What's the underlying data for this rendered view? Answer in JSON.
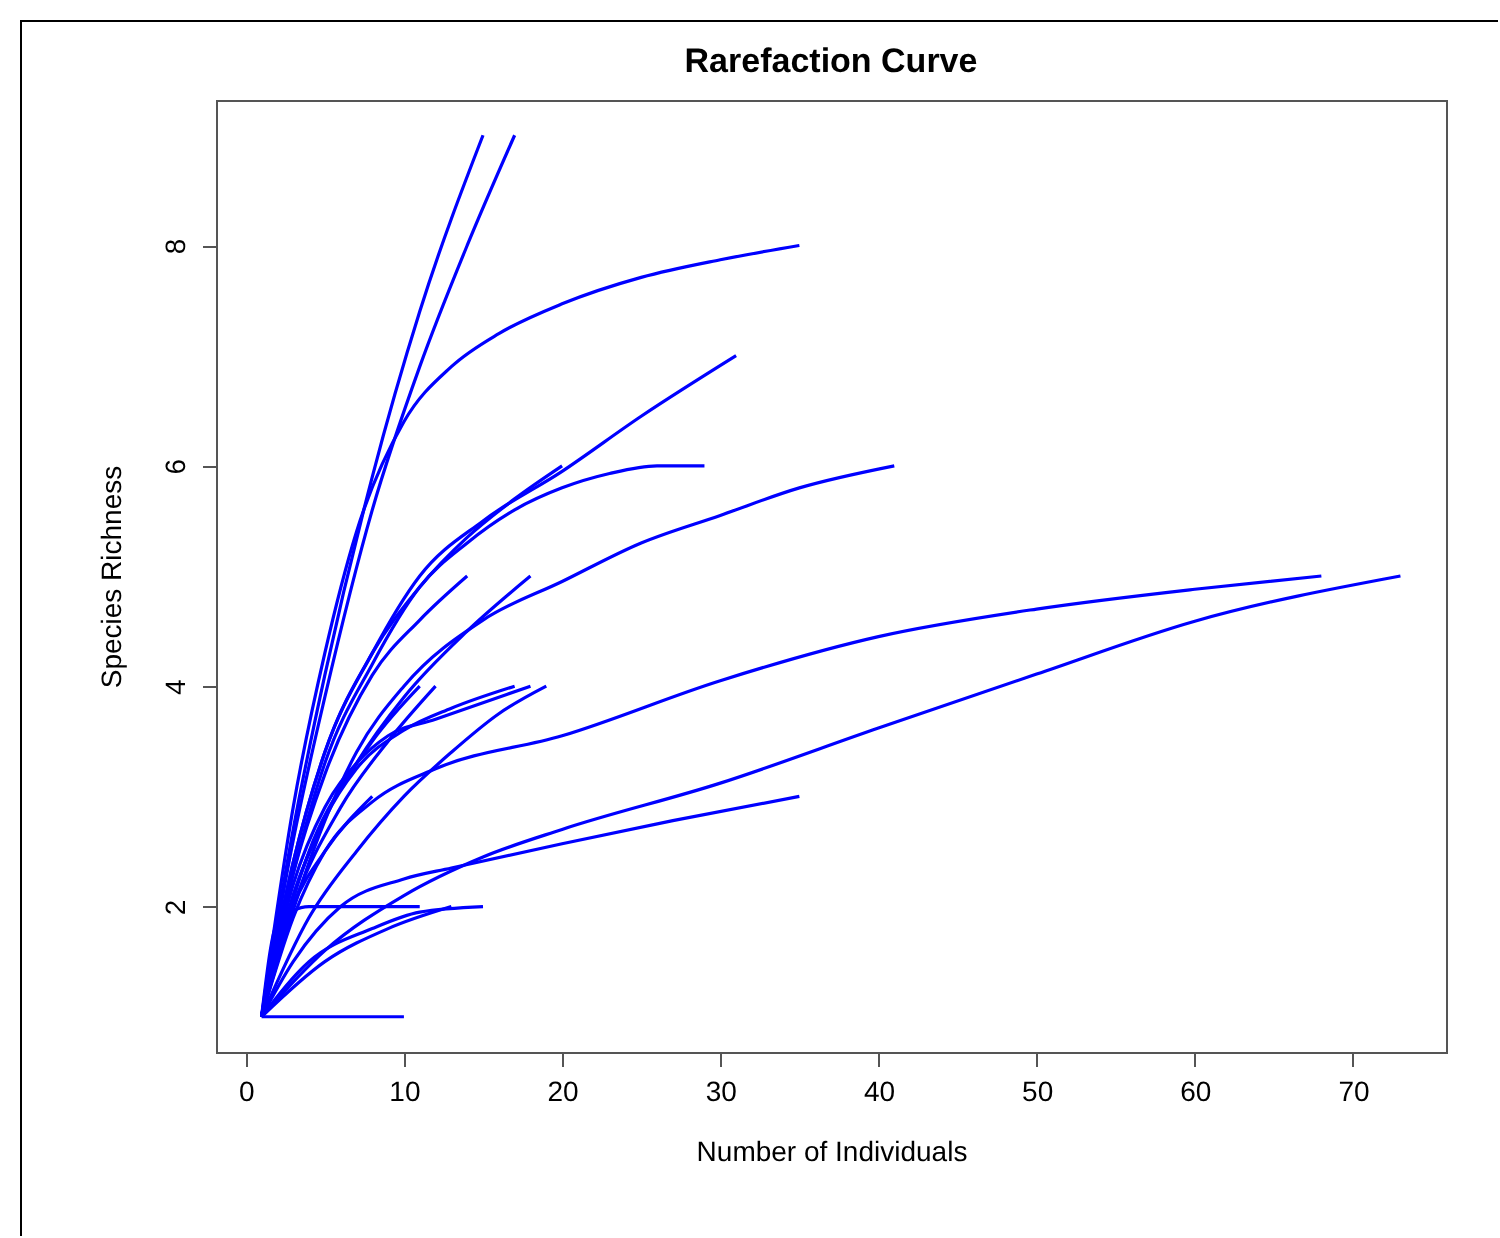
{
  "chart_data": {
    "type": "line",
    "title": "Rarefaction Curve",
    "xlabel": "Number of Individuals",
    "ylabel": "Species Richness",
    "xlim": [
      -1.88,
      75.88
    ],
    "ylim": [
      0.68,
      9.32
    ],
    "xticks": [
      0,
      10,
      20,
      30,
      40,
      50,
      60,
      70
    ],
    "yticks": [
      2,
      4,
      6,
      8
    ],
    "series": [
      {
        "color": "#0000ff",
        "x": [
          1,
          3,
          5,
          8,
          11,
          15
        ],
        "values": [
          1,
          2.7,
          4.1,
          5.9,
          7.4,
          9
        ]
      },
      {
        "color": "#0000ff",
        "x": [
          1,
          3,
          5,
          8,
          11,
          14,
          17
        ],
        "values": [
          1,
          2.6,
          3.9,
          5.6,
          6.9,
          8,
          9
        ]
      },
      {
        "color": "#0000ff",
        "x": [
          1,
          3,
          5,
          7,
          10,
          13,
          16,
          20,
          25,
          30,
          35
        ],
        "values": [
          1,
          2.9,
          4.3,
          5.4,
          6.4,
          6.9,
          7.2,
          7.47,
          7.71,
          7.87,
          8
        ]
      },
      {
        "color": "#0000ff",
        "x": [
          1,
          3,
          5,
          8,
          11,
          15,
          20,
          25,
          31
        ],
        "values": [
          1,
          2.4,
          3.4,
          4.3,
          5,
          5.5,
          5.95,
          6.45,
          7
        ]
      },
      {
        "color": "#0000ff",
        "x": [
          1,
          3,
          5,
          8,
          11,
          14,
          17,
          20
        ],
        "values": [
          1,
          2.4,
          3.4,
          4.3,
          4.9,
          5.35,
          5.7,
          6
        ]
      },
      {
        "color": "#0000ff",
        "x": [
          1,
          3,
          5,
          8,
          11,
          14,
          17,
          20,
          23,
          26,
          29
        ],
        "values": [
          1,
          2.3,
          3.3,
          4.2,
          4.9,
          5.3,
          5.6,
          5.8,
          5.93,
          6,
          6
        ]
      },
      {
        "color": "#0000ff",
        "x": [
          1,
          4,
          7,
          10,
          15,
          20,
          25,
          30,
          35,
          41
        ],
        "values": [
          1,
          2.4,
          3.4,
          4,
          4.6,
          4.95,
          5.3,
          5.55,
          5.8,
          6
        ]
      },
      {
        "color": "#0000ff",
        "x": [
          1,
          3,
          5,
          8,
          11,
          14
        ],
        "values": [
          1,
          2.3,
          3.2,
          4.1,
          4.6,
          5
        ]
      },
      {
        "color": "#0000ff",
        "x": [
          1,
          4,
          7,
          10,
          14,
          18
        ],
        "values": [
          1,
          2.5,
          3.3,
          3.9,
          4.5,
          5
        ]
      },
      {
        "color": "#0000ff",
        "x": [
          1,
          3,
          5,
          8,
          12,
          20,
          30,
          40,
          50,
          60,
          68
        ],
        "values": [
          1,
          1.9,
          2.5,
          2.95,
          3.25,
          3.55,
          4.05,
          4.45,
          4.7,
          4.88,
          5
        ]
      },
      {
        "color": "#0000ff",
        "x": [
          1,
          5,
          10,
          15,
          20,
          30,
          40,
          50,
          60,
          73
        ],
        "values": [
          1,
          1.6,
          2.1,
          2.45,
          2.7,
          3.12,
          3.62,
          4.11,
          4.59,
          5
        ]
      },
      {
        "color": "#0000ff",
        "x": [
          1,
          3,
          6,
          10,
          13,
          20,
          27,
          35
        ],
        "values": [
          1,
          1.5,
          2,
          2.25,
          2.35,
          2.57,
          2.78,
          3
        ]
      },
      {
        "color": "#0000ff",
        "x": [
          1,
          10
        ],
        "values": [
          1,
          1
        ]
      },
      {
        "color": "#0000ff",
        "x": [
          1,
          4,
          8,
          11,
          15
        ],
        "values": [
          1,
          1.5,
          1.8,
          1.95,
          2
        ]
      },
      {
        "color": "#0000ff",
        "x": [
          1,
          2,
          4,
          11
        ],
        "values": [
          1,
          1.85,
          2,
          2
        ]
      },
      {
        "color": "#0000ff",
        "x": [
          1,
          5,
          9,
          13
        ],
        "values": [
          1,
          1.5,
          1.8,
          2
        ]
      },
      {
        "color": "#0000ff",
        "x": [
          1,
          3,
          5,
          7,
          9,
          12,
          15,
          18
        ],
        "values": [
          1,
          2.2,
          2.9,
          3.3,
          3.55,
          3.7,
          3.85,
          4
        ]
      },
      {
        "color": "#0000ff",
        "x": [
          1,
          3,
          5,
          7,
          10,
          13,
          17
        ],
        "values": [
          1,
          2.1,
          2.8,
          3.25,
          3.6,
          3.8,
          4
        ]
      },
      {
        "color": "#0000ff",
        "x": [
          1,
          4,
          7,
          10,
          13,
          16,
          19
        ],
        "values": [
          1,
          1.9,
          2.5,
          3,
          3.4,
          3.75,
          4
        ]
      },
      {
        "color": "#0000ff",
        "x": [
          1,
          3,
          5,
          8,
          11
        ],
        "values": [
          1,
          2.1,
          2.8,
          3.5,
          4
        ]
      },
      {
        "color": "#0000ff",
        "x": [
          1,
          3,
          6,
          9,
          12
        ],
        "values": [
          1,
          2,
          2.9,
          3.5,
          4
        ]
      },
      {
        "color": "#0000ff",
        "x": [
          1,
          3,
          5,
          8
        ],
        "values": [
          1,
          2,
          2.5,
          3
        ]
      }
    ]
  }
}
